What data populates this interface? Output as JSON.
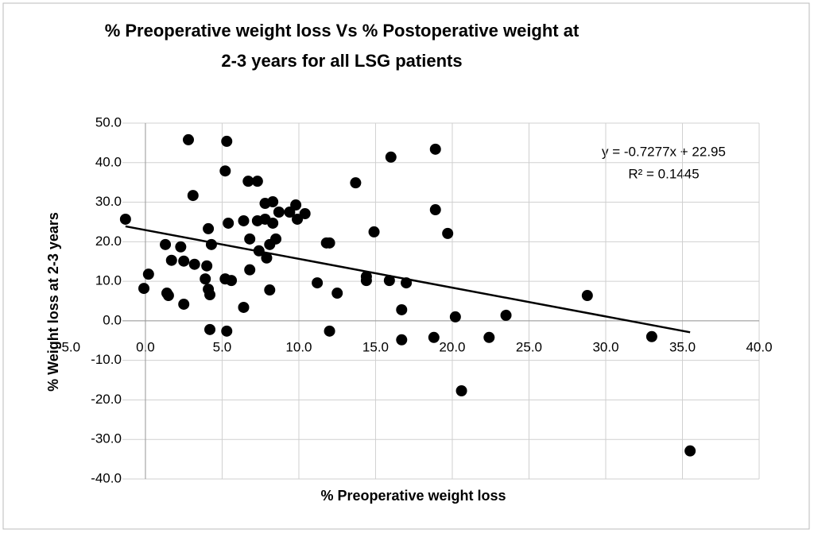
{
  "chart_data": {
    "type": "scatter",
    "title": [
      "% Preoperative weight loss Vs % Postoperative weight at",
      "2-3 years for all LSG patients"
    ],
    "xlabel": "% Preoperative weight loss",
    "ylabel": "% Weight loss at 2-3 years",
    "annotations": [
      "y = -0.7277x + 22.95",
      "R² = 0.1445"
    ],
    "color": "#000000",
    "grid": true,
    "xlim": [
      -1.5,
      40
    ],
    "ylim": [
      -40,
      50
    ],
    "xticks": [
      {
        "value": -5,
        "label": "-5.0"
      },
      {
        "value": 0,
        "label": "0.0"
      },
      {
        "value": 5,
        "label": "5.0"
      },
      {
        "value": 10,
        "label": "10.0"
      },
      {
        "value": 15,
        "label": "15.0"
      },
      {
        "value": 20,
        "label": "20.0"
      },
      {
        "value": 25,
        "label": "25.0"
      },
      {
        "value": 30,
        "label": "30.0"
      },
      {
        "value": 35,
        "label": "35.0"
      },
      {
        "value": 40,
        "label": "40.0"
      }
    ],
    "yticks": [
      {
        "value": -40,
        "label": "-40.0"
      },
      {
        "value": -30,
        "label": "-30.0"
      },
      {
        "value": -20,
        "label": "-20.0"
      },
      {
        "value": -10,
        "label": "-10.0"
      },
      {
        "value": 0,
        "label": "0.0"
      },
      {
        "value": 10,
        "label": "10.0"
      },
      {
        "value": 20,
        "label": "20.0"
      },
      {
        "value": 30,
        "label": "30.0"
      },
      {
        "value": 40,
        "label": "40.0"
      },
      {
        "value": 50,
        "label": "50.0"
      }
    ],
    "trendline": {
      "x": [
        -1.3,
        35.5
      ],
      "y": [
        23.9,
        -2.9
      ]
    },
    "x": [
      -1.3,
      -0.1,
      0.2,
      2.8,
      5.3,
      3.1,
      5.2,
      4.1,
      4.3,
      5.4,
      1.3,
      2.3,
      1.7,
      2.5,
      3.2,
      4.0,
      3.9,
      4.1,
      4.2,
      1.4,
      1.5,
      2.5,
      5.2,
      5.6,
      4.2,
      5.3,
      6.4,
      6.4,
      6.7,
      7.3,
      6.8,
      6.8,
      7.3,
      7.4,
      7.8,
      7.8,
      8.3,
      8.3,
      7.9,
      8.1,
      8.1,
      8.5,
      8.7,
      9.4,
      9.8,
      9.9,
      10.4,
      11.2,
      11.8,
      12.0,
      12.0,
      12.5,
      13.7,
      14.4,
      14.4,
      14.9,
      16.0,
      15.9,
      17.0,
      16.7,
      16.7,
      18.9,
      18.9,
      18.8,
      19.7,
      20.2,
      20.6,
      22.4,
      23.5,
      28.8,
      33.0,
      35.5
    ],
    "values": [
      25.7,
      8.2,
      11.8,
      45.8,
      45.4,
      31.7,
      37.9,
      23.3,
      19.3,
      24.7,
      19.3,
      18.7,
      15.3,
      15.1,
      14.3,
      13.9,
      10.6,
      8.0,
      6.6,
      7.0,
      6.4,
      4.2,
      10.6,
      10.2,
      -2.2,
      -2.6,
      3.4,
      25.3,
      35.3,
      35.3,
      20.7,
      12.9,
      25.3,
      17.7,
      25.7,
      29.7,
      30.1,
      24.7,
      15.9,
      19.3,
      7.8,
      20.7,
      27.5,
      27.5,
      29.3,
      25.7,
      27.1,
      9.6,
      19.7,
      19.7,
      -2.6,
      7.0,
      34.9,
      11.2,
      10.2,
      22.5,
      41.4,
      10.2,
      9.6,
      2.8,
      -4.8,
      43.4,
      28.1,
      -4.2,
      22.1,
      1.0,
      -17.7,
      -4.2,
      1.4,
      6.4,
      -4.0,
      -32.9
    ]
  }
}
